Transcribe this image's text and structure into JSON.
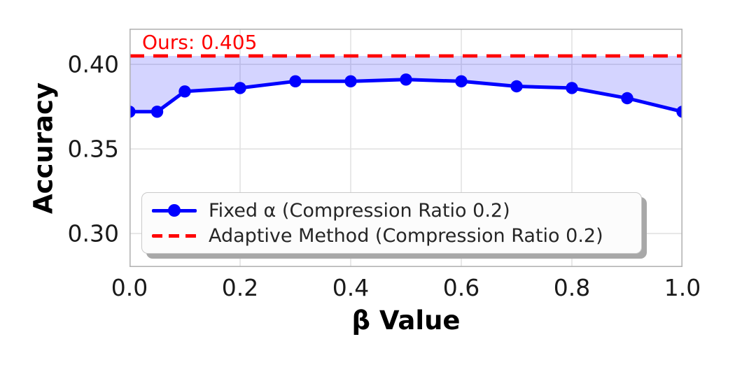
{
  "chart_data": {
    "type": "line",
    "title": "",
    "xlabel": "β Value",
    "ylabel": "Accuracy",
    "annotation": "Ours: 0.405",
    "xlim": [
      0.0,
      1.0
    ],
    "ylim": [
      0.2802,
      0.4211
    ],
    "xticks": [
      0.0,
      0.2,
      0.4,
      0.6,
      0.8,
      1.0
    ],
    "xtick_labels": [
      "0.0",
      "0.2",
      "0.4",
      "0.6",
      "0.8",
      "1.0"
    ],
    "yticks": [
      0.3,
      0.35,
      0.4
    ],
    "ytick_labels": [
      "0.30",
      "0.35",
      "0.40"
    ],
    "grid": true,
    "grid_color": "#e2e2e2",
    "border_color": "#b4b4b4",
    "legend_position": "lower-left",
    "series": [
      {
        "name": "Fixed α (Compression Ratio 0.2)",
        "type": "line",
        "marker": "circle",
        "color": "#0000ff",
        "x": [
          0.0,
          0.05,
          0.1,
          0.2,
          0.3,
          0.4,
          0.5,
          0.6,
          0.7,
          0.8,
          0.9,
          1.0
        ],
        "y": [
          0.372,
          0.372,
          0.384,
          0.386,
          0.39,
          0.39,
          0.391,
          0.39,
          0.387,
          0.386,
          0.38,
          0.372
        ]
      },
      {
        "name": "Adaptive Method (Compression Ratio 0.2)",
        "type": "hline",
        "style": "dashed",
        "color": "#ff0000",
        "value": 0.405
      }
    ],
    "fill_between": {
      "between": "series-0-and-adaptive-line",
      "upper_value": 0.405,
      "color": "#0000ff",
      "opacity": 0.17
    }
  }
}
